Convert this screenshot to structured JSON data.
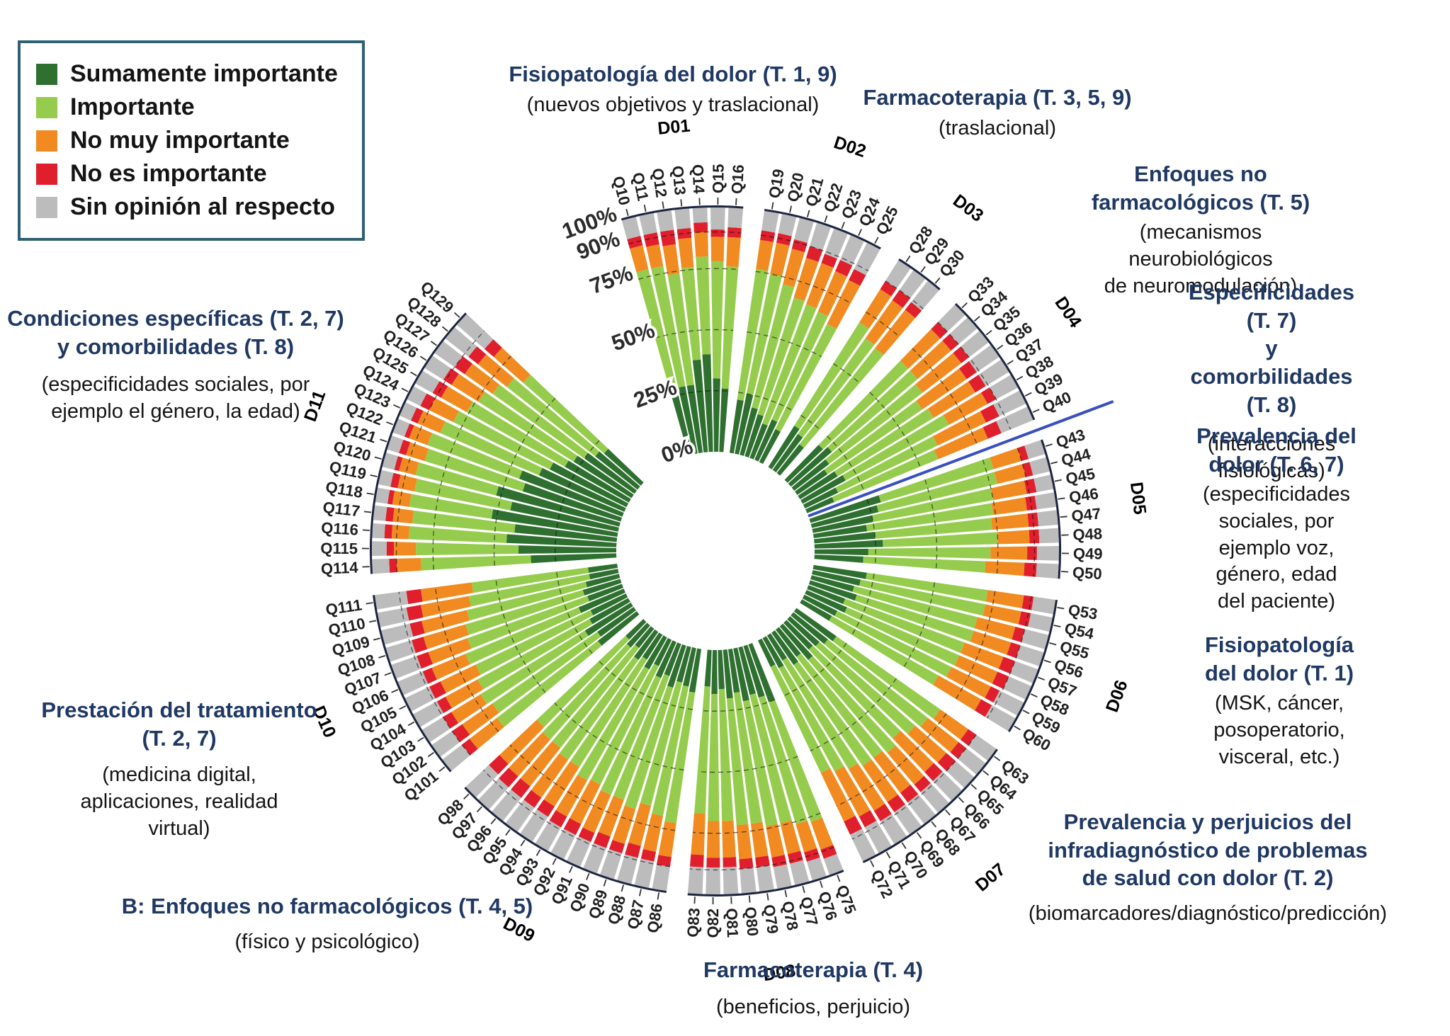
{
  "chart_data": {
    "type": "radial-stacked-bar",
    "units": "percent",
    "categories": [
      "Sumamente importante",
      "Importante",
      "No muy importante",
      "No es importante",
      "Sin opinión al respecto"
    ],
    "colors": [
      "#2F7031",
      "#96CC4D",
      "#F18B21",
      "#E01F2D",
      "#BCBCBC"
    ],
    "radial_axis": {
      "tick_labels": [
        "0%",
        "25%",
        "50%",
        "75%",
        "90%",
        "100%"
      ],
      "tick_values": [
        0,
        25,
        50,
        75,
        90,
        100
      ]
    },
    "legend_position": "top-left",
    "grid": "dashed-rings",
    "groups": [
      {
        "label": "D01",
        "questions": [
          "Q10",
          "Q11",
          "Q12",
          "Q13",
          "Q14",
          "Q15",
          "Q16"
        ],
        "values": [
          [
            30,
            48,
            10,
            4,
            8
          ],
          [
            28,
            50,
            9,
            5,
            8
          ],
          [
            28,
            46,
            12,
            6,
            8
          ],
          [
            38,
            38,
            12,
            4,
            8
          ],
          [
            40,
            40,
            10,
            4,
            6
          ],
          [
            30,
            48,
            10,
            3,
            9
          ],
          [
            26,
            50,
            12,
            4,
            8
          ]
        ]
      },
      {
        "label": "D02",
        "questions": [
          "Q19",
          "Q20",
          "Q21",
          "Q22",
          "Q23",
          "Q24",
          "Q25"
        ],
        "values": [
          [
            22,
            54,
            12,
            4,
            8
          ],
          [
            25,
            50,
            13,
            4,
            8
          ],
          [
            20,
            52,
            15,
            4,
            9
          ],
          [
            18,
            50,
            17,
            5,
            10
          ],
          [
            15,
            52,
            18,
            4,
            11
          ],
          [
            18,
            48,
            18,
            5,
            11
          ],
          [
            15,
            48,
            20,
            5,
            12
          ]
        ]
      },
      {
        "label": "D03",
        "questions": [
          "Q28",
          "Q29",
          "Q30"
        ],
        "values": [
          [
            20,
            50,
            16,
            4,
            10
          ],
          [
            18,
            48,
            19,
            5,
            10
          ],
          [
            15,
            50,
            20,
            4,
            11
          ]
        ]
      },
      {
        "label": "D04",
        "questions": [
          "Q33",
          "Q34",
          "Q35",
          "Q36",
          "Q37",
          "Q38",
          "Q39",
          "Q40"
        ],
        "values": [
          [
            20,
            48,
            18,
            4,
            10
          ],
          [
            22,
            46,
            18,
            4,
            10
          ],
          [
            18,
            48,
            20,
            4,
            10
          ],
          [
            15,
            47,
            22,
            5,
            11
          ],
          [
            18,
            46,
            20,
            5,
            11
          ],
          [
            20,
            48,
            18,
            4,
            10
          ],
          [
            15,
            45,
            22,
            6,
            12
          ],
          [
            12,
            46,
            22,
            6,
            14
          ]
        ]
      },
      {
        "label": "D05",
        "questions": [
          "Q43",
          "Q44",
          "Q45",
          "Q46",
          "Q47",
          "Q48",
          "Q49",
          "Q50"
        ],
        "values": [
          [
            30,
            48,
            12,
            3,
            7
          ],
          [
            28,
            50,
            12,
            3,
            7
          ],
          [
            25,
            50,
            14,
            4,
            7
          ],
          [
            22,
            52,
            14,
            4,
            8
          ],
          [
            25,
            48,
            15,
            4,
            8
          ],
          [
            28,
            47,
            13,
            4,
            8
          ],
          [
            22,
            50,
            15,
            4,
            9
          ],
          [
            20,
            50,
            16,
            5,
            9
          ]
        ]
      },
      {
        "label": "D06",
        "questions": [
          "Q53",
          "Q54",
          "Q55",
          "Q56",
          "Q57",
          "Q58",
          "Q59",
          "Q60"
        ],
        "values": [
          [
            22,
            50,
            15,
            4,
            9
          ],
          [
            20,
            52,
            15,
            4,
            9
          ],
          [
            18,
            52,
            16,
            4,
            10
          ],
          [
            20,
            50,
            16,
            4,
            10
          ],
          [
            16,
            52,
            17,
            5,
            10
          ],
          [
            18,
            50,
            17,
            5,
            10
          ],
          [
            15,
            52,
            18,
            4,
            11
          ],
          [
            14,
            50,
            20,
            5,
            11
          ]
        ]
      },
      {
        "label": "D07",
        "questions": [
          "Q63",
          "Q64",
          "Q65",
          "Q66",
          "Q67",
          "Q68",
          "Q69",
          "Q70",
          "Q71",
          "Q72"
        ],
        "values": [
          [
            20,
            52,
            14,
            4,
            10
          ],
          [
            18,
            52,
            16,
            4,
            10
          ],
          [
            16,
            52,
            17,
            5,
            10
          ],
          [
            15,
            50,
            19,
            5,
            11
          ],
          [
            18,
            50,
            17,
            4,
            11
          ],
          [
            14,
            52,
            18,
            5,
            11
          ],
          [
            16,
            50,
            18,
            5,
            11
          ],
          [
            12,
            52,
            20,
            5,
            11
          ],
          [
            14,
            48,
            21,
            5,
            12
          ],
          [
            12,
            48,
            22,
            6,
            12
          ]
        ]
      },
      {
        "label": "D08",
        "questions": [
          "Q75",
          "Q76",
          "Q77",
          "Q78",
          "Q79",
          "Q80",
          "Q81",
          "Q82",
          "Q83"
        ],
        "values": [
          [
            25,
            52,
            12,
            4,
            7
          ],
          [
            22,
            54,
            12,
            4,
            8
          ],
          [
            20,
            54,
            13,
            4,
            9
          ],
          [
            22,
            52,
            13,
            4,
            9
          ],
          [
            18,
            54,
            14,
            4,
            10
          ],
          [
            20,
            52,
            14,
            4,
            10
          ],
          [
            16,
            54,
            15,
            4,
            11
          ],
          [
            18,
            52,
            15,
            4,
            11
          ],
          [
            15,
            52,
            17,
            5,
            11
          ]
        ]
      },
      {
        "label": "D09",
        "questions": [
          "Q86",
          "Q87",
          "Q88",
          "Q89",
          "Q90",
          "Q91",
          "Q92",
          "Q93",
          "Q94",
          "Q95",
          "Q96",
          "Q97",
          "Q98"
        ],
        "values": [
          [
            18,
            54,
            14,
            4,
            10
          ],
          [
            16,
            54,
            15,
            4,
            11
          ],
          [
            15,
            52,
            17,
            5,
            11
          ],
          [
            18,
            52,
            15,
            4,
            11
          ],
          [
            14,
            54,
            16,
            5,
            11
          ],
          [
            16,
            52,
            17,
            4,
            11
          ],
          [
            12,
            54,
            18,
            5,
            11
          ],
          [
            15,
            52,
            17,
            5,
            11
          ],
          [
            12,
            52,
            19,
            5,
            12
          ],
          [
            14,
            50,
            19,
            5,
            12
          ],
          [
            10,
            52,
            20,
            6,
            12
          ],
          [
            12,
            50,
            20,
            6,
            12
          ],
          [
            10,
            50,
            21,
            6,
            13
          ]
        ]
      },
      {
        "label": "D10",
        "questions": [
          "Q101",
          "Q102",
          "Q103",
          "Q104",
          "Q105",
          "Q106",
          "Q107",
          "Q108",
          "Q109",
          "Q110",
          "Q111"
        ],
        "values": [
          [
            20,
            52,
            14,
            4,
            10
          ],
          [
            18,
            52,
            15,
            5,
            10
          ],
          [
            22,
            50,
            14,
            4,
            10
          ],
          [
            18,
            52,
            15,
            4,
            11
          ],
          [
            16,
            52,
            16,
            5,
            11
          ],
          [
            20,
            50,
            15,
            4,
            11
          ],
          [
            15,
            52,
            17,
            5,
            11
          ],
          [
            16,
            50,
            18,
            5,
            11
          ],
          [
            14,
            50,
            19,
            5,
            12
          ],
          [
            12,
            50,
            20,
            6,
            12
          ],
          [
            12,
            48,
            21,
            6,
            13
          ]
        ]
      },
      {
        "label": "D11",
        "questions": [
          "Q114",
          "Q115",
          "Q116",
          "Q117",
          "Q118",
          "Q119",
          "Q120",
          "Q121",
          "Q122",
          "Q123",
          "Q124",
          "Q125",
          "Q126",
          "Q127",
          "Q128",
          "Q129"
        ],
        "values": [
          [
            35,
            45,
            10,
            3,
            7
          ],
          [
            40,
            42,
            9,
            3,
            6
          ],
          [
            45,
            40,
            7,
            3,
            5
          ],
          [
            42,
            42,
            8,
            3,
            5
          ],
          [
            52,
            34,
            7,
            2,
            5
          ],
          [
            45,
            40,
            7,
            3,
            5
          ],
          [
            52,
            34,
            7,
            2,
            5
          ],
          [
            42,
            42,
            8,
            3,
            5
          ],
          [
            45,
            40,
            8,
            2,
            5
          ],
          [
            38,
            44,
            10,
            3,
            5
          ],
          [
            35,
            44,
            11,
            4,
            6
          ],
          [
            30,
            46,
            12,
            4,
            8
          ],
          [
            28,
            46,
            13,
            4,
            9
          ],
          [
            25,
            46,
            14,
            5,
            10
          ],
          [
            22,
            46,
            15,
            5,
            12
          ],
          [
            20,
            44,
            16,
            5,
            15
          ]
        ]
      }
    ]
  },
  "annotations": [
    {
      "heading": "Fisiopatología del dolor (T. 1, 9)",
      "sub": "(nuevos objetivos y traslacional)"
    },
    {
      "heading": "Farmacoterapia (T. 3, 5, 9)",
      "sub": "(traslacional)"
    },
    {
      "heading": "Enfoques no farmacológicos (T. 5)",
      "sub": "(mecanismos neurobiológicos\nde neuromodulación)"
    },
    {
      "heading": "Especificidades (T. 7)\ny comorbilidades (T. 8)",
      "sub": "(interacciones fisiológicas)"
    },
    {
      "heading": "Prevalencia del dolor (T. 6, 7)",
      "sub": "(especificidades sociales, por\nejemplo voz, género, edad\ndel paciente)"
    },
    {
      "heading": "Fisiopatología del dolor (T. 1)",
      "sub": "(MSK, cáncer, posoperatorio,\nvisceral, etc.)"
    },
    {
      "heading": "Prevalencia y perjuicios del\ninfradiagnóstico de problemas\nde salud con dolor (T. 2)",
      "sub": "(biomarcadores/diagnóstico/predicción)"
    },
    {
      "heading": "Farmacoterapia (T. 4)",
      "sub": "(beneficios, perjuicio)"
    },
    {
      "heading": "B: Enfoques no farmacológicos (T. 4, 5)",
      "sub": "(físico y psicológico)"
    },
    {
      "heading": "Prestación del tratamiento\n(T. 2, 7)",
      "sub": "(medicina digital,\naplicaciones, realidad\nvirtual)"
    },
    {
      "heading": "Condiciones específicas (T. 2, 7)\ny comorbilidades (T. 8)",
      "sub": "(especificidades sociales, por\nejemplo el género, la edad)"
    }
  ]
}
